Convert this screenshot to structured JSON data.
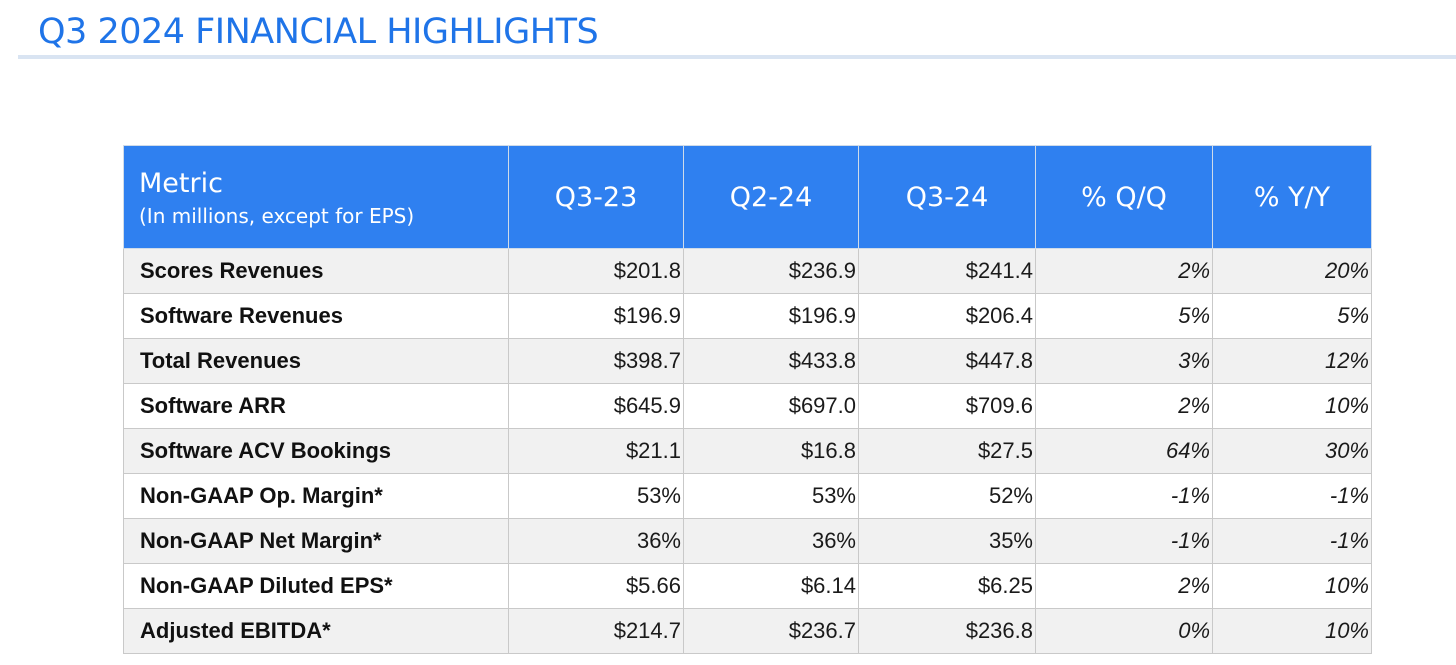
{
  "page": {
    "title": "Q3 2024 FINANCIAL HIGHLIGHTS"
  },
  "table": {
    "headers": {
      "metric": "Metric",
      "metric_sub": "(In millions, except for EPS)",
      "q3_23": "Q3-23",
      "q2_24": "Q2-24",
      "q3_24": "Q3-24",
      "pct_qq": "% Q/Q",
      "pct_yy": "% Y/Y"
    },
    "rows": [
      {
        "metric": "Scores Revenues",
        "q3_23": "$201.8",
        "q2_24": "$236.9",
        "q3_24": "$241.4",
        "pct_qq": "2%",
        "pct_yy": "20%"
      },
      {
        "metric": "Software Revenues",
        "q3_23": "$196.9",
        "q2_24": "$196.9",
        "q3_24": "$206.4",
        "pct_qq": "5%",
        "pct_yy": "5%"
      },
      {
        "metric": "Total Revenues",
        "q3_23": "$398.7",
        "q2_24": "$433.8",
        "q3_24": "$447.8",
        "pct_qq": "3%",
        "pct_yy": "12%"
      },
      {
        "metric": "Software ARR",
        "q3_23": "$645.9",
        "q2_24": "$697.0",
        "q3_24": "$709.6",
        "pct_qq": "2%",
        "pct_yy": "10%"
      },
      {
        "metric": "Software ACV Bookings",
        "q3_23": "$21.1",
        "q2_24": "$16.8",
        "q3_24": "$27.5",
        "pct_qq": "64%",
        "pct_yy": "30%"
      },
      {
        "metric": "Non-GAAP Op. Margin*",
        "q3_23": "53%",
        "q2_24": "53%",
        "q3_24": "52%",
        "pct_qq": "-1%",
        "pct_yy": "-1%"
      },
      {
        "metric": "Non-GAAP Net Margin*",
        "q3_23": "36%",
        "q2_24": "36%",
        "q3_24": "35%",
        "pct_qq": "-1%",
        "pct_yy": "-1%"
      },
      {
        "metric": "Non-GAAP Diluted EPS*",
        "q3_23": "$5.66",
        "q2_24": "$6.14",
        "q3_24": "$6.25",
        "pct_qq": "2%",
        "pct_yy": "10%"
      },
      {
        "metric": "Adjusted EBITDA*",
        "q3_23": "$214.7",
        "q2_24": "$236.7",
        "q3_24": "$236.8",
        "pct_qq": "0%",
        "pct_yy": "10%"
      }
    ]
  },
  "colors": {
    "accent": "#1f74e8",
    "header_bg": "#2f80f0",
    "row_alt": "#f1f1f1"
  }
}
